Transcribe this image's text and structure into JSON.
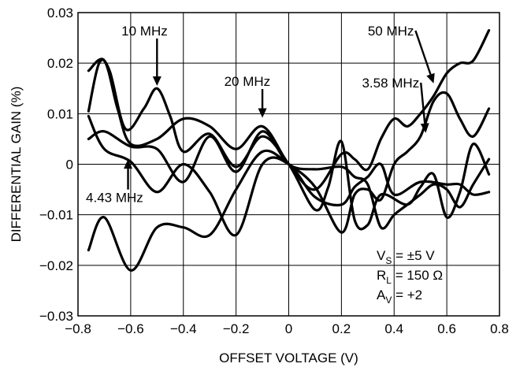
{
  "chart_data": {
    "type": "line",
    "xlabel": "OFFSET VOLTAGE (V)",
    "ylabel": "DIFFERENTIAL GAIN (%)",
    "xlim": [
      -0.8,
      0.8
    ],
    "ylim": [
      -0.03,
      0.03
    ],
    "grid": true,
    "x_ticks": [
      "−0.8",
      "−0.6",
      "−0.4",
      "−0.2",
      "0",
      "0.2",
      "0.4",
      "0.6",
      "0.8"
    ],
    "y_ticks": [
      "0.03",
      "0.02",
      "0.01",
      "0",
      "−0.01",
      "−0.02",
      "−0.03"
    ],
    "series": [
      {
        "name": "10 MHz",
        "x": [
          -0.76,
          -0.72,
          -0.68,
          -0.62,
          -0.55,
          -0.5,
          -0.45,
          -0.4,
          -0.3,
          -0.2,
          -0.1,
          0,
          0.1,
          0.15,
          0.2,
          0.25,
          0.3,
          0.35,
          0.45,
          0.5,
          0.55,
          0.6,
          0.65,
          0.7,
          0.76
        ],
        "y": [
          0.0105,
          0.02,
          0.0185,
          0.007,
          0.011,
          0.015,
          0.0095,
          0.0025,
          0.006,
          -0.0005,
          0.0055,
          0.0,
          -0.009,
          -0.0045,
          0.0045,
          -0.011,
          -0.012,
          -0.006,
          -0.008,
          -0.0045,
          -0.002,
          -0.0105,
          -0.0055,
          0.004,
          -0.002
        ]
      },
      {
        "name": "20 MHz",
        "x": [
          -0.76,
          -0.7,
          -0.6,
          -0.5,
          -0.4,
          -0.3,
          -0.2,
          -0.1,
          0,
          0.1,
          0.2,
          0.25,
          0.3,
          0.35,
          0.4,
          0.5,
          0.6,
          0.65,
          0.7,
          0.76
        ],
        "y": [
          0.0095,
          0.003,
          0.0005,
          -0.0055,
          0.0,
          -0.0055,
          -0.014,
          0.0,
          0.0,
          -0.0065,
          -0.008,
          -0.0045,
          -0.0025,
          0.0,
          -0.006,
          -0.0035,
          -0.004,
          -0.004,
          -0.006,
          -0.0055
        ]
      },
      {
        "name": "3.58 MHz",
        "x": [
          -0.76,
          -0.7,
          -0.6,
          -0.5,
          -0.4,
          -0.3,
          -0.2,
          -0.1,
          0,
          0.1,
          0.2,
          0.25,
          0.3,
          0.35,
          0.4,
          0.45,
          0.5,
          0.55,
          0.6,
          0.65,
          0.7,
          0.76
        ],
        "y": [
          -0.017,
          -0.0105,
          -0.021,
          -0.0125,
          -0.0125,
          -0.014,
          -0.005,
          0.0025,
          0.0,
          -0.0045,
          -0.0135,
          -0.006,
          -0.005,
          -0.007,
          0.0,
          0.0025,
          0.0055,
          0.0125,
          0.014,
          0.009,
          0.0055,
          0.011
        ]
      },
      {
        "name": "4.43 MHz",
        "x": [
          -0.76,
          -0.7,
          -0.6,
          -0.5,
          -0.4,
          -0.3,
          -0.2,
          -0.1,
          0,
          0.1,
          0.2,
          0.25,
          0.3,
          0.35,
          0.4,
          0.45,
          0.5,
          0.55,
          0.6,
          0.65,
          0.7,
          0.76
        ],
        "y": [
          0.005,
          0.0065,
          0.0035,
          0.003,
          -0.0035,
          0.0055,
          -0.0015,
          0.0065,
          0.0,
          -0.001,
          -0.0005,
          -0.0025,
          -0.004,
          -0.0125,
          -0.01,
          -0.008,
          -0.006,
          -0.004,
          -0.005,
          -0.0085,
          -0.004,
          0.001
        ]
      },
      {
        "name": "50 MHz",
        "x": [
          -0.76,
          -0.7,
          -0.65,
          -0.6,
          -0.5,
          -0.4,
          -0.3,
          -0.2,
          -0.1,
          0,
          0.1,
          0.2,
          0.25,
          0.3,
          0.35,
          0.4,
          0.45,
          0.5,
          0.55,
          0.6,
          0.65,
          0.7,
          0.76
        ],
        "y": [
          0.0185,
          0.0205,
          0.011,
          0.004,
          0.005,
          0.009,
          0.0075,
          0.003,
          0.0075,
          0.0,
          -0.005,
          0.002,
          0.001,
          -0.001,
          0.005,
          0.009,
          0.0075,
          0.01,
          0.0135,
          0.018,
          0.02,
          0.0205,
          0.0265
        ]
      }
    ],
    "annotations": [
      {
        "text": "10 MHz",
        "x": -0.635,
        "y": 0.0255,
        "arrow_to": [
          -0.5,
          0.0155
        ]
      },
      {
        "text": "20 MHz",
        "x": -0.245,
        "y": 0.0155,
        "arrow_to": [
          -0.1,
          0.0092
        ]
      },
      {
        "text": "50 MHz",
        "x": 0.3,
        "y": 0.0255,
        "arrow_to": [
          0.55,
          0.016
        ]
      },
      {
        "text": "3.58 MHz",
        "x": 0.278,
        "y": 0.0152,
        "arrow_to": [
          0.52,
          0.0062
        ]
      },
      {
        "text": "4.43 MHz",
        "x": -0.77,
        "y": -0.0075,
        "arrow_to": [
          -0.61,
          0.001
        ]
      }
    ],
    "conditions": [
      {
        "main": "V",
        "sub": "S",
        "rest": " = ±5 V"
      },
      {
        "main": "R",
        "sub": "L",
        "rest": " = 150 Ω"
      },
      {
        "main": "A",
        "sub": "V",
        "rest": " = +2"
      }
    ]
  }
}
